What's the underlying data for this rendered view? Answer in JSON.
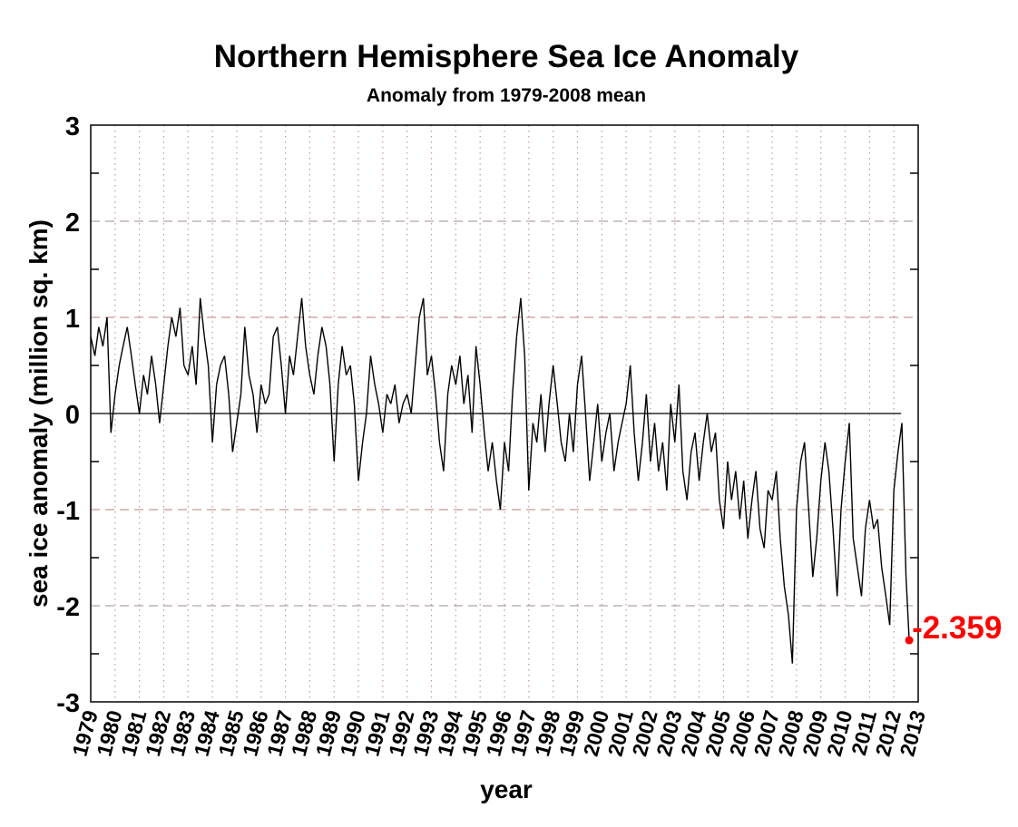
{
  "chart_data": {
    "type": "line",
    "title": "Northern Hemisphere Sea Ice Anomaly",
    "subtitle": "Anomaly from 1979-2008 mean",
    "xlabel": "year",
    "ylabel": "sea ice anomaly (million sq. km)",
    "xlim": [
      1979,
      2013
    ],
    "ylim": [
      -3,
      3
    ],
    "y_ticks": [
      3,
      2,
      1,
      0,
      -1,
      -2,
      -3
    ],
    "x_ticks": [
      1979,
      1980,
      1981,
      1982,
      1983,
      1984,
      1985,
      1986,
      1987,
      1988,
      1989,
      1990,
      1991,
      1992,
      1993,
      1994,
      1995,
      1996,
      1997,
      1998,
      1999,
      2000,
      2001,
      2002,
      2003,
      2004,
      2005,
      2006,
      2007,
      2008,
      2009,
      2010,
      2011,
      2012,
      2013
    ],
    "grid": {
      "horizontal": "dashed",
      "vertical": "dotted"
    },
    "colors": {
      "line": "#000000",
      "grid": "#c49a94",
      "highlight": "#ff0000"
    },
    "series": [
      {
        "x": [
          1979.0,
          1979.17,
          1979.33,
          1979.5,
          1979.67,
          1979.83,
          1980.0,
          1980.17,
          1980.33,
          1980.5,
          1980.67,
          1980.83,
          1981.0,
          1981.17,
          1981.33,
          1981.5,
          1981.67,
          1981.83,
          1982.0,
          1982.17,
          1982.33,
          1982.5,
          1982.67,
          1982.83,
          1983.0,
          1983.17,
          1983.33,
          1983.5,
          1983.67,
          1983.83,
          1984.0,
          1984.17,
          1984.33,
          1984.5,
          1984.67,
          1984.83,
          1985.0,
          1985.17,
          1985.33,
          1985.5,
          1985.67,
          1985.83,
          1986.0,
          1986.17,
          1986.33,
          1986.5,
          1986.67,
          1986.83,
          1987.0,
          1987.17,
          1987.33,
          1987.5,
          1987.67,
          1987.83,
          1988.0,
          1988.17,
          1988.33,
          1988.5,
          1988.67,
          1988.83,
          1989.0,
          1989.17,
          1989.33,
          1989.5,
          1989.67,
          1989.83,
          1990.0,
          1990.17,
          1990.33,
          1990.5,
          1990.67,
          1990.83,
          1991.0,
          1991.17,
          1991.33,
          1991.5,
          1991.67,
          1991.83,
          1992.0,
          1992.17,
          1992.33,
          1992.5,
          1992.67,
          1992.83,
          1993.0,
          1993.17,
          1993.33,
          1993.5,
          1993.67,
          1993.83,
          1994.0,
          1994.17,
          1994.33,
          1994.5,
          1994.67,
          1994.83,
          1995.0,
          1995.17,
          1995.33,
          1995.5,
          1995.67,
          1995.83,
          1996.0,
          1996.17,
          1996.33,
          1996.5,
          1996.67,
          1996.83,
          1997.0,
          1997.17,
          1997.33,
          1997.5,
          1997.67,
          1997.83,
          1998.0,
          1998.17,
          1998.33,
          1998.5,
          1998.67,
          1998.83,
          1999.0,
          1999.17,
          1999.33,
          1999.5,
          1999.67,
          1999.83,
          2000.0,
          2000.17,
          2000.33,
          2000.5,
          2000.67,
          2000.83,
          2001.0,
          2001.17,
          2001.33,
          2001.5,
          2001.67,
          2001.83,
          2002.0,
          2002.17,
          2002.33,
          2002.5,
          2002.67,
          2002.83,
          2003.0,
          2003.17,
          2003.33,
          2003.5,
          2003.67,
          2003.83,
          2004.0,
          2004.17,
          2004.33,
          2004.5,
          2004.67,
          2004.83,
          2005.0,
          2005.17,
          2005.33,
          2005.5,
          2005.67,
          2005.83,
          2006.0,
          2006.17,
          2006.33,
          2006.5,
          2006.67,
          2006.83,
          2007.0,
          2007.17,
          2007.33,
          2007.5,
          2007.67,
          2007.83,
          2008.0,
          2008.17,
          2008.33,
          2008.5,
          2008.67,
          2008.83,
          2009.0,
          2009.17,
          2009.33,
          2009.5,
          2009.67,
          2009.83,
          2010.0,
          2010.17,
          2010.33,
          2010.5,
          2010.67,
          2010.83,
          2011.0,
          2011.17,
          2011.33,
          2011.5,
          2011.67,
          2011.83,
          2012.0,
          2012.17,
          2012.33,
          2012.5,
          2012.63
        ],
        "y": [
          0.8,
          0.6,
          0.9,
          0.7,
          1.0,
          -0.2,
          0.2,
          0.5,
          0.7,
          0.9,
          0.6,
          0.3,
          0.0,
          0.4,
          0.2,
          0.6,
          0.3,
          -0.1,
          0.3,
          0.7,
          1.0,
          0.8,
          1.1,
          0.5,
          0.4,
          0.7,
          0.3,
          1.2,
          0.8,
          0.5,
          -0.3,
          0.3,
          0.5,
          0.6,
          0.2,
          -0.4,
          -0.1,
          0.2,
          0.9,
          0.4,
          0.2,
          -0.2,
          0.3,
          0.1,
          0.2,
          0.8,
          0.9,
          0.5,
          0.0,
          0.6,
          0.4,
          0.8,
          1.2,
          0.7,
          0.4,
          0.2,
          0.6,
          0.9,
          0.7,
          0.3,
          -0.5,
          0.3,
          0.7,
          0.4,
          0.5,
          0.1,
          -0.7,
          -0.3,
          0.0,
          0.6,
          0.3,
          0.1,
          -0.2,
          0.2,
          0.1,
          0.3,
          -0.1,
          0.1,
          0.2,
          0.0,
          0.5,
          1.0,
          1.2,
          0.4,
          0.6,
          0.2,
          -0.3,
          -0.6,
          0.2,
          0.5,
          0.3,
          0.6,
          0.1,
          0.4,
          -0.2,
          0.7,
          0.3,
          -0.2,
          -0.6,
          -0.3,
          -0.7,
          -1.0,
          -0.3,
          -0.6,
          0.2,
          0.8,
          1.2,
          0.6,
          -0.8,
          -0.1,
          -0.3,
          0.2,
          -0.4,
          0.1,
          0.5,
          0.1,
          -0.3,
          -0.5,
          0.0,
          -0.4,
          0.3,
          0.6,
          0.0,
          -0.7,
          -0.3,
          0.1,
          -0.5,
          -0.2,
          0.0,
          -0.6,
          -0.3,
          -0.1,
          0.1,
          0.5,
          -0.2,
          -0.7,
          -0.3,
          0.2,
          -0.5,
          -0.1,
          -0.6,
          -0.3,
          -0.8,
          0.1,
          -0.3,
          0.3,
          -0.6,
          -0.9,
          -0.4,
          -0.2,
          -0.7,
          -0.3,
          0.0,
          -0.4,
          -0.2,
          -0.9,
          -1.2,
          -0.5,
          -0.9,
          -0.6,
          -1.1,
          -0.7,
          -1.3,
          -0.9,
          -0.6,
          -1.2,
          -1.4,
          -0.8,
          -0.9,
          -0.6,
          -1.3,
          -1.8,
          -2.1,
          -2.6,
          -1.0,
          -0.5,
          -0.3,
          -1.0,
          -1.7,
          -1.3,
          -0.7,
          -0.3,
          -0.6,
          -1.2,
          -1.9,
          -1.0,
          -0.5,
          -0.1,
          -1.3,
          -1.6,
          -1.9,
          -1.2,
          -0.9,
          -1.2,
          -1.1,
          -1.6,
          -1.9,
          -2.2,
          -0.8,
          -0.4,
          -0.1,
          -1.7,
          -2.359
        ]
      }
    ],
    "annotation": {
      "label": "-2.359",
      "x": 2012.63,
      "y": -2.359
    }
  }
}
